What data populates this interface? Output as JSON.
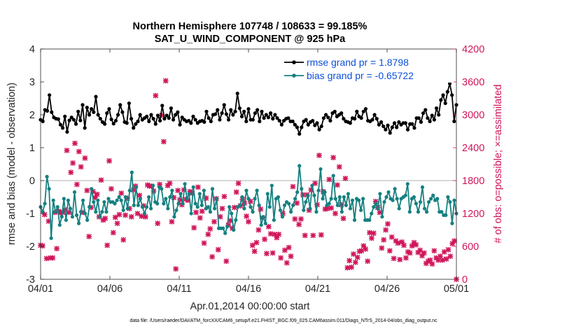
{
  "chart_data": {
    "type": "line",
    "title": "Northern Hemisphere 107748 / 108633 = 99.185%",
    "subtitle": "SAT_U_WIND_COMPONENT @ 925 hPa",
    "xlabel": "Apr.01,2014 00:00:00 start",
    "ylabel": "rmse and bias (model - observation)",
    "y2label": "# of obs: o=possible; ×=assimilated",
    "footer": "data file: /Users/raeder/DAI/ATM_forcXX/CAM6_setup/f.e21.FHIST_BGC.f09_025.CAM6assim.011/Diags_NTrS_2014-04/obs_diag_output.nc",
    "x_ticks": [
      "04/01",
      "04/06",
      "04/11",
      "04/16",
      "04/21",
      "04/26",
      "05/01"
    ],
    "xlim_days": [
      0,
      30
    ],
    "ylim": [
      -3,
      4
    ],
    "y_ticks": [
      "-3",
      "-2",
      "-1",
      "0",
      "1",
      "2",
      "3",
      "4"
    ],
    "y2lim": [
      0,
      4200
    ],
    "y2_ticks": [
      "0",
      "600",
      "1200",
      "1800",
      "2400",
      "3000",
      "3600",
      "4200"
    ],
    "colors": {
      "rmse": "#000000",
      "bias": "#168080",
      "obs": "#d0155a",
      "legend_text": "#0a4fdc",
      "zero_line": "#b0b0b0"
    },
    "series": [
      {
        "name": "rmse grand pr = 1.8798",
        "axis": "left",
        "values": [
          1.85,
          1.8,
          2.15,
          2.12,
          2.6,
          2.08,
          1.92,
          1.88,
          1.87,
          1.7,
          1.6,
          1.95,
          1.48,
          1.83,
          1.92,
          1.85,
          1.72,
          2.1,
          1.83,
          2.3,
          1.6,
          2.22,
          2.0,
          2.18,
          2.08,
          2.55,
          2.0,
          1.88,
          1.78,
          1.72,
          2.05,
          2.18,
          1.86,
          1.73,
          1.82,
          2.0,
          2.3,
          2.08,
          1.78,
          1.75,
          2.35,
          1.88,
          1.6,
          1.72,
          1.8,
          2.0,
          1.85,
          1.9,
          1.95,
          1.8,
          2.0,
          1.88,
          1.72,
          1.98,
          1.82,
          2.28,
          1.88,
          1.98,
          1.9,
          2.2,
          1.85,
          2.0,
          2.08,
          1.7,
          1.92,
          1.85,
          1.8,
          1.82,
          1.75,
          1.95,
          1.85,
          1.75,
          1.8,
          1.82,
          1.78,
          2.1,
          1.9,
          1.8,
          2.0,
          2.02,
          2.15,
          1.85,
          2.05,
          2.3,
          2.02,
          1.85,
          2.15,
          2.0,
          2.1,
          2.65,
          2.2,
          1.95,
          2.1,
          1.8,
          2.18,
          1.85,
          1.85,
          2.05,
          2.15,
          1.8,
          2.1,
          1.9,
          2.0,
          1.92,
          2.05,
          1.88,
          2.0,
          1.9,
          1.82,
          1.7,
          1.82,
          1.88,
          1.9,
          1.8,
          1.8,
          1.7,
          1.62,
          1.42,
          1.62,
          1.8,
          1.85,
          1.7,
          1.78,
          1.82,
          1.68,
          1.75,
          1.55,
          1.65,
          1.9,
          2.0,
          1.92,
          1.82,
          2.05,
          2.1,
          1.95,
          2.0,
          2.05,
          1.88,
          1.8,
          1.78,
          1.75,
          1.9,
          1.88,
          2.1,
          1.95,
          1.9,
          2.1,
          2.18,
          1.82,
          1.8,
          1.85,
          2.0,
          1.88,
          1.7,
          1.78,
          1.65,
          1.55,
          1.68,
          1.45,
          1.62,
          1.75,
          1.62,
          1.78,
          1.7,
          1.75,
          1.75,
          1.55,
          1.72,
          1.72,
          1.6,
          1.9,
          1.9,
          1.78,
          2.05,
          2.15,
          1.9,
          1.8,
          1.98,
          1.85,
          2.2,
          2.0,
          2.45,
          2.6,
          2.35,
          2.7,
          2.95,
          2.6,
          1.8,
          2.3
        ],
        "color": "#000000"
      },
      {
        "name": "bias grand pr = -0.65722",
        "axis": "left",
        "values": [
          -0.8,
          -0.95,
          -0.7,
          0.12,
          -0.25,
          -1.75,
          -0.6,
          -0.95,
          -0.8,
          -1.35,
          -1.1,
          -0.55,
          -1.2,
          -0.6,
          -0.85,
          -1.1,
          -0.35,
          -1.05,
          -1.3,
          -0.95,
          -0.6,
          -1.0,
          -1.2,
          -0.8,
          -0.25,
          -0.65,
          -0.95,
          -0.6,
          -1.1,
          -0.95,
          -0.65,
          -0.95,
          -0.55,
          -0.65,
          -0.65,
          -0.7,
          -0.6,
          -0.5,
          -0.6,
          -0.9,
          -0.5,
          -0.85,
          -0.3,
          0.25,
          -0.75,
          -0.2,
          -0.75,
          -0.55,
          -0.8,
          -1.0,
          -0.8,
          -0.5,
          -0.85,
          -0.15,
          -0.65,
          -0.7,
          -0.2,
          -0.25,
          -0.7,
          -0.55,
          -0.85,
          -0.5,
          -0.3,
          -1.1,
          -0.9,
          -0.7,
          -0.4,
          -0.7,
          -0.1,
          -0.55,
          -0.4,
          -1.0,
          -0.2,
          -0.7,
          -0.8,
          -0.4,
          -0.75,
          -0.3,
          -0.85,
          -0.8,
          -0.95,
          -0.25,
          -0.85,
          -0.55,
          -1.45,
          -1.45,
          -1.45,
          -1.6,
          -1.4,
          -0.8,
          -1.0,
          -1.5,
          -1.2,
          -0.8,
          -0.75,
          -0.5,
          -0.85,
          -0.3,
          -0.55,
          -0.8,
          -0.95,
          -0.55,
          -0.3,
          -0.75,
          -1.35,
          -1.1,
          -1.3,
          -0.4,
          -0.8,
          -0.15,
          -1.2,
          -0.55,
          -0.5,
          -0.9,
          -1.1,
          -0.75,
          -0.65,
          -0.7,
          -0.95,
          -0.75,
          -0.55,
          -0.35,
          0.45,
          -0.25,
          -0.9,
          -0.65,
          -0.45,
          -0.85,
          -0.15,
          -0.45,
          -0.95,
          -0.3,
          0.35,
          -0.55,
          -0.35,
          -0.75,
          -0.7,
          -0.55,
          0.15,
          -0.55,
          -0.75,
          -0.5,
          -0.95,
          -0.5,
          -0.75,
          -0.4,
          -0.85,
          -0.6,
          -1.2,
          -0.55,
          -0.6,
          -0.9,
          -0.55,
          -1.2,
          -1.2,
          -1.2,
          -1.0,
          -0.8,
          -0.7,
          -0.85,
          -0.4,
          -1.1,
          -0.65,
          -0.5,
          -0.35,
          -0.55,
          -0.6,
          -0.25,
          -0.55,
          -0.85,
          -0.55,
          -0.5,
          -0.45,
          -0.1,
          -0.95,
          -0.55,
          -0.5,
          -0.7,
          -0.95,
          -0.65,
          -0.2,
          -0.85,
          -0.95,
          -0.65,
          -0.55,
          -0.45,
          -0.6,
          -0.55,
          -0.95,
          -0.95,
          -1.05,
          -1.05,
          -0.5,
          -0.65,
          -1.3,
          -0.6,
          -1.0
        ],
        "color": "#168080"
      },
      {
        "name": "assimilated obs count",
        "axis": "right",
        "values": [
          620,
          610,
          1180,
          380,
          1060,
          390,
          390,
          1220,
          560,
          1240,
          1210,
          1220,
          1270,
          2350,
          1220,
          1950,
          2120,
          2480,
          1730,
          2330,
          2050,
          1220,
          2210,
          1620,
          780,
          1310,
          1600,
          1490,
          1550,
          1140,
          1810,
          1080,
          1110,
          620,
          2160,
          1650,
          850,
          1130,
          1020,
          1180,
          1570,
          720,
          1170,
          1480,
          1290,
          1140,
          1630,
          1700,
          1200,
          1530,
          1150,
          1340,
          1140,
          1720,
          1700,
          1700,
          1610,
          3350,
          1020,
          1730,
          2990,
          2510,
          3620,
          1710,
          1750,
          1050,
          1490,
          190,
          1620,
          1450,
          1360,
          1630,
          1460,
          1440,
          1600,
          1570,
          940,
          1220,
          1680,
          1120,
          1240,
          660,
          1480,
          820,
          920,
          410,
          1050,
          1470,
          540,
          1140,
          1290,
          1510,
          330,
          990,
          1070,
          930,
          1310,
          1590,
          1750,
          1340,
          1460,
          1390,
          1150,
          1050,
          1420,
          620,
          510,
          670,
          900,
          1280,
          1120,
          730,
          470,
          960,
          830,
          480,
          820,
          760,
          820,
          390,
          1200,
          530,
          300,
          580,
          420,
          1690,
          1100,
          1390,
          1000,
          1100,
          1540,
          800,
          1540,
          1260,
          1630,
          800,
          1750,
          1360,
          2260,
          810,
          1600,
          1280,
          1290,
          1820,
          1300,
          2220,
          1200,
          1720,
          2050,
          1360,
          1110,
          1840,
          210,
          340,
          220,
          460,
          310,
          400,
          510,
          520,
          610,
          550,
          330,
          850,
          750,
          840,
          1420,
          1310,
          1220,
          570,
          720,
          900,
          1010,
          520,
          770,
          380,
          700,
          660,
          360,
          680,
          620,
          390,
          500,
          480,
          610,
          670,
          630,
          490,
          530,
          430,
          480,
          290,
          330,
          350,
          280,
          520,
          390,
          350,
          420,
          350,
          500,
          370,
          540,
          420,
          650,
          700,
          0
        ]
      }
    ]
  }
}
